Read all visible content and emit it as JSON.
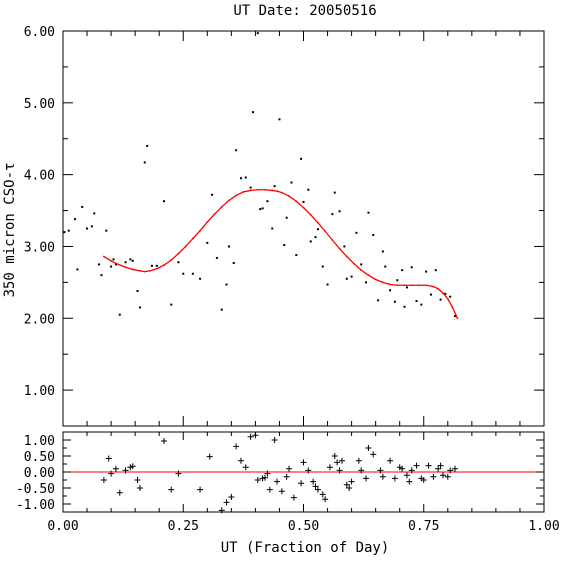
{
  "chart_data": [
    {
      "type": "scatter",
      "panel": "top",
      "title": "UT Date: 20050516",
      "xlabel": "",
      "ylabel": "350 micron CSO-τ",
      "xlim": [
        0.0,
        1.0
      ],
      "ylim": [
        0.5,
        6.0
      ],
      "y_ticks": [
        "1.00",
        "2.00",
        "3.00",
        "4.00",
        "5.00",
        "6.00"
      ],
      "grid": false,
      "colors": {
        "points": "#000000",
        "fit": "#ff0000"
      },
      "series": [
        {
          "kind": "points",
          "x": [
            0.003,
            0.012,
            0.025,
            0.03,
            0.04,
            0.05,
            0.06,
            0.065,
            0.075,
            0.08,
            0.09,
            0.1,
            0.105,
            0.11,
            0.118,
            0.13,
            0.14,
            0.145,
            0.155,
            0.16,
            0.17,
            0.175,
            0.185,
            0.195,
            0.21,
            0.225,
            0.24,
            0.25,
            0.27,
            0.285,
            0.3,
            0.31,
            0.32,
            0.33,
            0.34,
            0.345,
            0.355,
            0.36,
            0.37,
            0.38,
            0.39,
            0.395,
            0.405,
            0.41,
            0.415,
            0.425,
            0.435,
            0.44,
            0.45,
            0.46,
            0.465,
            0.475,
            0.485,
            0.495,
            0.5,
            0.51,
            0.515,
            0.525,
            0.53,
            0.54,
            0.55,
            0.56,
            0.565,
            0.575,
            0.585,
            0.59,
            0.6,
            0.61,
            0.62,
            0.63,
            0.635,
            0.645,
            0.655,
            0.665,
            0.67,
            0.68,
            0.69,
            0.695,
            0.705,
            0.71,
            0.715,
            0.725,
            0.735,
            0.745,
            0.755,
            0.765,
            0.775,
            0.785,
            0.795,
            0.805,
            0.815
          ],
          "y": [
            3.2,
            3.22,
            3.38,
            2.68,
            3.55,
            3.25,
            3.28,
            3.46,
            2.75,
            2.6,
            3.22,
            2.72,
            2.82,
            2.75,
            2.05,
            2.78,
            2.82,
            2.8,
            2.38,
            2.15,
            4.17,
            4.4,
            2.73,
            2.73,
            3.63,
            2.19,
            2.78,
            2.62,
            2.62,
            2.55,
            3.05,
            3.72,
            2.84,
            2.12,
            2.47,
            3.0,
            2.77,
            4.34,
            3.95,
            3.96,
            3.82,
            4.87,
            5.97,
            3.52,
            3.53,
            3.63,
            3.25,
            3.84,
            4.77,
            3.02,
            3.4,
            3.89,
            2.88,
            4.22,
            3.62,
            3.79,
            3.07,
            3.13,
            3.24,
            2.72,
            2.47,
            3.45,
            3.75,
            3.49,
            3.0,
            2.55,
            2.58,
            3.19,
            2.75,
            2.5,
            3.47,
            3.16,
            2.25,
            2.93,
            2.72,
            2.39,
            2.23,
            2.53,
            2.67,
            2.16,
            2.43,
            2.71,
            2.24,
            2.19,
            2.65,
            2.33,
            2.67,
            2.26,
            2.34,
            2.3,
            2.03
          ]
        },
        {
          "kind": "fit",
          "x": [
            0.085,
            0.1,
            0.115,
            0.13,
            0.145,
            0.16,
            0.17,
            0.18,
            0.195,
            0.21,
            0.225,
            0.24,
            0.255,
            0.27,
            0.285,
            0.3,
            0.315,
            0.33,
            0.345,
            0.36,
            0.375,
            0.39,
            0.405,
            0.42,
            0.435,
            0.445,
            0.455,
            0.47,
            0.485,
            0.5,
            0.515,
            0.53,
            0.545,
            0.56,
            0.575,
            0.59,
            0.605,
            0.62,
            0.635,
            0.65,
            0.665,
            0.68,
            0.695,
            0.71,
            0.725,
            0.74,
            0.755,
            0.77,
            0.78,
            0.79,
            0.8,
            0.81,
            0.82
          ],
          "y": [
            2.86,
            2.8,
            2.75,
            2.71,
            2.68,
            2.66,
            2.65,
            2.66,
            2.69,
            2.74,
            2.81,
            2.9,
            3.0,
            3.11,
            3.22,
            3.34,
            3.45,
            3.55,
            3.64,
            3.71,
            3.76,
            3.78,
            3.79,
            3.79,
            3.78,
            3.77,
            3.75,
            3.7,
            3.63,
            3.54,
            3.44,
            3.33,
            3.21,
            3.09,
            2.97,
            2.86,
            2.76,
            2.67,
            2.6,
            2.54,
            2.5,
            2.47,
            2.46,
            2.46,
            2.46,
            2.46,
            2.46,
            2.44,
            2.41,
            2.35,
            2.27,
            2.15,
            2.0
          ]
        }
      ]
    },
    {
      "type": "scatter",
      "panel": "residuals",
      "xlabel": "UT (Fraction of Day)",
      "ylabel": "",
      "xlim": [
        0.0,
        1.0
      ],
      "ylim": [
        -1.25,
        1.25
      ],
      "x_ticks": [
        "0.00",
        "0.25",
        "0.50",
        "0.75",
        "1.00"
      ],
      "y_ticks": [
        "-1.00",
        "-0.50",
        "0.00",
        "0.50",
        "1.00"
      ],
      "reference_line": 0.0,
      "colors": {
        "markers": "#000000",
        "zero_line": "#ff0000"
      },
      "series": [
        {
          "kind": "residual-markers",
          "x": [
            0.085,
            0.095,
            0.1,
            0.11,
            0.118,
            0.13,
            0.14,
            0.145,
            0.155,
            0.16,
            0.21,
            0.225,
            0.24,
            0.285,
            0.305,
            0.33,
            0.34,
            0.35,
            0.36,
            0.37,
            0.38,
            0.39,
            0.4,
            0.405,
            0.415,
            0.42,
            0.425,
            0.43,
            0.44,
            0.445,
            0.455,
            0.465,
            0.47,
            0.48,
            0.495,
            0.5,
            0.51,
            0.52,
            0.525,
            0.53,
            0.54,
            0.545,
            0.555,
            0.565,
            0.57,
            0.575,
            0.58,
            0.59,
            0.595,
            0.6,
            0.615,
            0.62,
            0.63,
            0.635,
            0.645,
            0.66,
            0.665,
            0.68,
            0.69,
            0.7,
            0.705,
            0.715,
            0.72,
            0.725,
            0.735,
            0.745,
            0.75,
            0.76,
            0.77,
            0.78,
            0.785,
            0.79,
            0.8,
            0.805,
            0.815
          ],
          "y": [
            -0.25,
            0.42,
            -0.05,
            0.1,
            -0.65,
            0.05,
            0.15,
            0.18,
            -0.25,
            -0.5,
            0.97,
            -0.55,
            -0.05,
            -0.55,
            0.48,
            -1.2,
            -0.95,
            -0.78,
            0.8,
            0.35,
            0.15,
            1.1,
            1.15,
            -0.25,
            -0.2,
            -0.18,
            -0.05,
            -0.55,
            1.0,
            -0.3,
            -0.6,
            -0.15,
            0.1,
            -0.8,
            -0.35,
            0.3,
            0.05,
            -0.3,
            -0.45,
            -0.55,
            -0.7,
            -0.85,
            0.15,
            0.5,
            0.3,
            0.05,
            0.35,
            -0.4,
            -0.5,
            -0.3,
            0.35,
            0.05,
            -0.2,
            0.75,
            0.55,
            0.05,
            -0.15,
            0.35,
            -0.2,
            0.15,
            0.1,
            -0.1,
            -0.3,
            0.05,
            0.2,
            -0.2,
            -0.25,
            0.2,
            -0.15,
            0.1,
            0.2,
            -0.1,
            -0.15,
            0.05,
            0.1
          ]
        }
      ]
    }
  ]
}
